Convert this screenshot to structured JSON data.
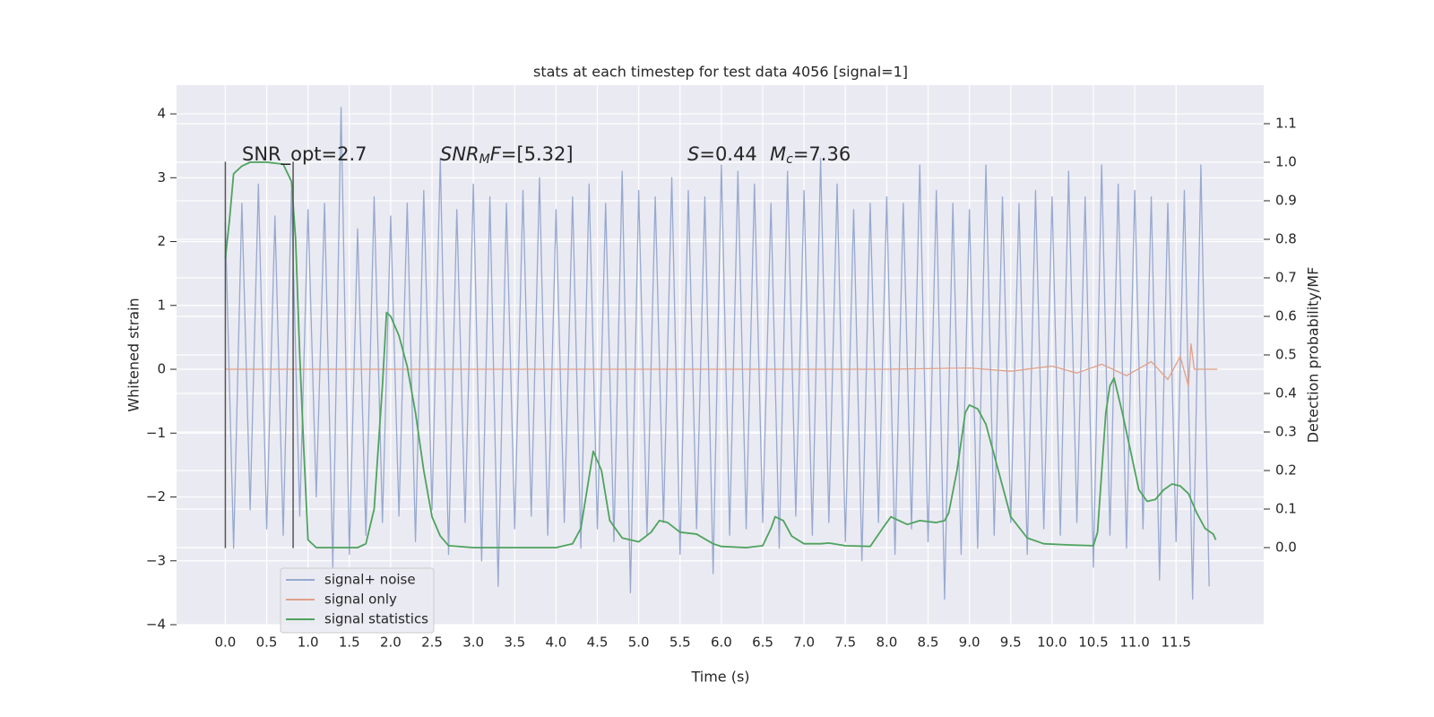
{
  "chart_data": {
    "type": "line",
    "title": "stats at each timestep for test data 4056 [signal=1]",
    "xlabel": "Time (s)",
    "ylabel": "Whitened strain",
    "y2label": "Detection probability/MF",
    "xlim": [
      -0.59,
      12.56
    ],
    "ylim": [
      -4,
      4.45
    ],
    "y2lim": [
      -0.2,
      1.2
    ],
    "xticks": [
      {
        "value": 0,
        "label": "0.0"
      },
      0.5,
      {
        "value": 1,
        "label": "1.0"
      },
      1.5,
      {
        "value": 2,
        "label": "2.0"
      },
      2.5,
      {
        "value": 3,
        "label": "3.0"
      },
      3.5,
      {
        "value": 4,
        "label": "4.0"
      },
      4.5,
      {
        "value": 5,
        "label": "5.0"
      },
      5.5,
      {
        "value": 6,
        "label": "6.0"
      },
      6.5,
      {
        "value": 7,
        "label": "7.0"
      },
      7.5,
      {
        "value": 8,
        "label": "8.0"
      },
      8.5,
      {
        "value": 9,
        "label": "9.0"
      },
      9.5,
      {
        "value": 10,
        "label": "10.0"
      },
      10.5,
      {
        "value": 11,
        "label": "11.0"
      },
      11.5
    ],
    "yticks": [
      {
        "value": -4,
        "label": "−4"
      },
      {
        "value": -3,
        "label": "−3"
      },
      {
        "value": -2,
        "label": "−2"
      },
      {
        "value": -1,
        "label": "−1"
      },
      0,
      1,
      2,
      3,
      4
    ],
    "y2ticks": [
      {
        "value": 0,
        "label": "0.0"
      },
      0.1,
      0.2,
      0.3,
      0.4,
      0.5,
      0.6,
      0.7,
      0.8,
      0.9,
      {
        "value": 1,
        "label": "1.0"
      },
      1.1
    ],
    "grid": true,
    "legend": "lower left",
    "series": [
      {
        "name": "signal+ noise",
        "color": "#97a9cf",
        "x": [
          0.0,
          0.1,
          0.2,
          0.3,
          0.4,
          0.5,
          0.6,
          0.7,
          0.8,
          0.9,
          1.0,
          1.1,
          1.2,
          1.3,
          1.4,
          1.5,
          1.6,
          1.7,
          1.8,
          1.9,
          2.0,
          2.1,
          2.2,
          2.3,
          2.4,
          2.5,
          2.6,
          2.7,
          2.8,
          2.9,
          3.0,
          3.1,
          3.2,
          3.3,
          3.4,
          3.5,
          3.6,
          3.7,
          3.8,
          3.9,
          4.0,
          4.1,
          4.2,
          4.3,
          4.4,
          4.5,
          4.6,
          4.7,
          4.8,
          4.9,
          5.0,
          5.1,
          5.2,
          5.3,
          5.4,
          5.5,
          5.6,
          5.7,
          5.8,
          5.9,
          6.0,
          6.1,
          6.2,
          6.3,
          6.4,
          6.5,
          6.6,
          6.7,
          6.8,
          6.9,
          7.0,
          7.1,
          7.2,
          7.3,
          7.4,
          7.5,
          7.6,
          7.7,
          7.8,
          7.9,
          8.0,
          8.1,
          8.2,
          8.3,
          8.4,
          8.5,
          8.6,
          8.7,
          8.8,
          8.9,
          9.0,
          9.1,
          9.2,
          9.3,
          9.4,
          9.5,
          9.6,
          9.7,
          9.8,
          9.9,
          10.0,
          10.1,
          10.2,
          10.3,
          10.4,
          10.5,
          10.6,
          10.7,
          10.8,
          10.9,
          11.0,
          11.1,
          11.2,
          11.3,
          11.4,
          11.5,
          11.6,
          11.7,
          11.8,
          11.9
        ],
        "values": [
          2.3,
          -2.8,
          2.6,
          -2.2,
          2.9,
          -2.5,
          2.4,
          -2.6,
          2.8,
          -2.3,
          2.5,
          -2.0,
          2.6,
          -3.1,
          4.1,
          -2.9,
          2.2,
          -2.6,
          2.7,
          -2.4,
          2.4,
          -2.3,
          2.6,
          -2.7,
          2.8,
          -2.2,
          3.3,
          -2.9,
          2.5,
          -2.4,
          2.9,
          -3.0,
          2.7,
          -3.4,
          2.6,
          -2.5,
          2.8,
          -2.3,
          3.0,
          -2.6,
          2.5,
          -2.4,
          2.7,
          -2.8,
          2.9,
          -2.5,
          2.6,
          -2.7,
          3.1,
          -3.5,
          2.8,
          -2.6,
          2.7,
          -2.4,
          3.0,
          -2.9,
          2.8,
          -2.5,
          2.7,
          -3.2,
          3.2,
          -2.6,
          3.1,
          -2.5,
          2.9,
          -2.4,
          2.6,
          -2.8,
          3.1,
          -2.3,
          2.8,
          -2.6,
          3.3,
          -2.4,
          2.9,
          -2.7,
          2.5,
          -3.0,
          2.6,
          -2.4,
          2.7,
          -2.9,
          2.6,
          -2.5,
          3.2,
          -2.7,
          2.8,
          -3.6,
          2.6,
          -2.9,
          2.5,
          -2.8,
          3.2,
          -2.6,
          2.7,
          -2.4,
          2.6,
          -2.9,
          2.8,
          -2.5,
          2.7,
          -2.6,
          3.1,
          -2.4,
          2.7,
          -3.1,
          3.2,
          -2.6,
          2.9,
          -2.8,
          2.8,
          -2.5,
          2.7,
          -3.3,
          2.6,
          -2.7,
          2.8,
          -3.6,
          3.2,
          -3.4
        ]
      },
      {
        "name": "signal only",
        "color": "#e0a088",
        "x": [
          0,
          8.0,
          9.0,
          9.5,
          10.0,
          10.3,
          10.6,
          10.9,
          11.2,
          11.4,
          11.55,
          11.65,
          11.68,
          11.72,
          12.0
        ],
        "values": [
          0,
          0,
          0.02,
          -0.03,
          0.05,
          -0.06,
          0.08,
          -0.1,
          0.12,
          -0.16,
          0.2,
          -0.26,
          0.4,
          0,
          0
        ]
      },
      {
        "name": "signal statistics",
        "color": "#4ea35e",
        "axis": "y2",
        "x": [
          0.0,
          0.05,
          0.1,
          0.2,
          0.3,
          0.5,
          0.7,
          0.8,
          0.85,
          0.9,
          0.95,
          1.0,
          1.1,
          1.3,
          1.6,
          1.7,
          1.8,
          1.9,
          1.95,
          2.0,
          2.1,
          2.2,
          2.3,
          2.4,
          2.5,
          2.6,
          2.7,
          3.0,
          3.5,
          4.0,
          4.2,
          4.3,
          4.45,
          4.55,
          4.65,
          4.8,
          5.0,
          5.15,
          5.25,
          5.35,
          5.5,
          5.7,
          5.9,
          6.0,
          6.3,
          6.5,
          6.6,
          6.65,
          6.75,
          6.85,
          7.0,
          7.2,
          7.3,
          7.5,
          7.8,
          7.95,
          8.05,
          8.15,
          8.25,
          8.4,
          8.6,
          8.7,
          8.75,
          8.85,
          8.95,
          9.0,
          9.1,
          9.2,
          9.35,
          9.5,
          9.7,
          9.9,
          10.2,
          10.5,
          10.55,
          10.65,
          10.7,
          10.75,
          10.85,
          10.95,
          11.05,
          11.15,
          11.25,
          11.35,
          11.45,
          11.55,
          11.65,
          11.75,
          11.85,
          11.95,
          11.98
        ],
        "values": [
          0.75,
          0.85,
          0.97,
          0.99,
          1.0,
          1.0,
          0.995,
          0.95,
          0.8,
          0.5,
          0.25,
          0.02,
          0.0,
          0.0,
          0.0,
          0.01,
          0.1,
          0.42,
          0.61,
          0.6,
          0.55,
          0.47,
          0.35,
          0.2,
          0.08,
          0.03,
          0.005,
          0.0,
          0.0,
          0.0,
          0.01,
          0.05,
          0.25,
          0.2,
          0.07,
          0.025,
          0.015,
          0.04,
          0.07,
          0.065,
          0.04,
          0.035,
          0.01,
          0.003,
          0.0,
          0.005,
          0.05,
          0.08,
          0.07,
          0.03,
          0.01,
          0.01,
          0.012,
          0.005,
          0.003,
          0.05,
          0.08,
          0.07,
          0.06,
          0.07,
          0.065,
          0.07,
          0.09,
          0.2,
          0.35,
          0.37,
          0.36,
          0.32,
          0.2,
          0.08,
          0.025,
          0.01,
          0.007,
          0.005,
          0.04,
          0.35,
          0.42,
          0.44,
          0.35,
          0.25,
          0.15,
          0.12,
          0.125,
          0.15,
          0.165,
          0.16,
          0.14,
          0.09,
          0.05,
          0.035,
          0.02
        ]
      }
    ],
    "vlines": {
      "x": [
        0,
        0.82
      ],
      "ymin": -2.8,
      "ymax": 3.25,
      "color": "#555555"
    },
    "annotations": [
      [
        [
          "SNR_opt=2.7",
          "normal"
        ]
      ],
      [
        [
          "SNR",
          "italic"
        ],
        [
          "M",
          "sub"
        ],
        [
          "F",
          "italic"
        ],
        [
          "=[5.32]",
          "normal"
        ]
      ],
      [
        [
          "S",
          "italic"
        ],
        [
          "=0.44",
          "normal"
        ]
      ],
      [
        [
          "M",
          "italic"
        ],
        [
          "c",
          "sub"
        ],
        [
          "=7.36",
          "normal"
        ]
      ]
    ]
  }
}
